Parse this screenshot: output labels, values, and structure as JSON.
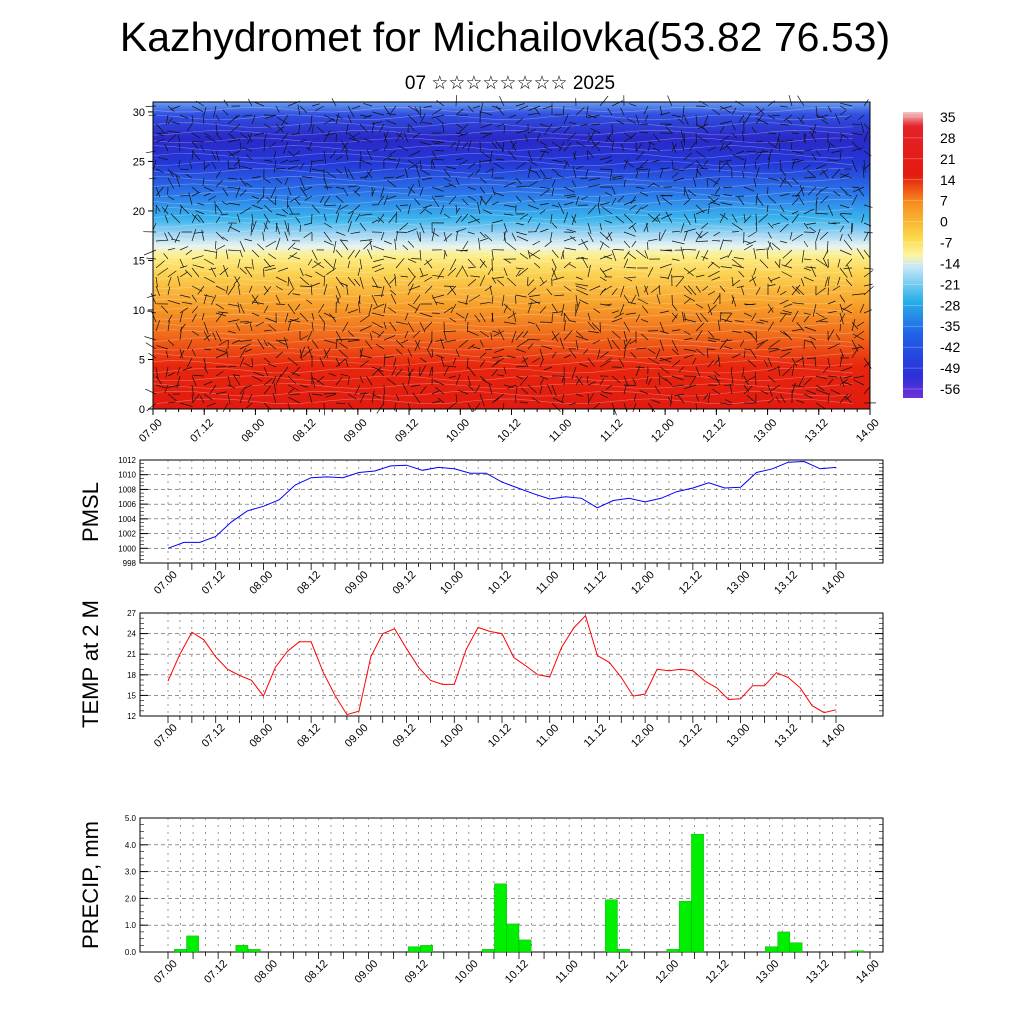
{
  "title": "Kazhydromet for Michailovka(53.82 76.53)",
  "subtitle": "07 ☆☆☆☆☆☆☆☆ 2025",
  "chart_data": [
    {
      "type": "heatmap",
      "name": "Temperature and wind cross-section",
      "x_ticks": [
        "07.00",
        "07.12",
        "08.00",
        "08.12",
        "09.00",
        "09.12",
        "10.00",
        "10.12",
        "11.00",
        "11.12",
        "12.00",
        "12.12",
        "13.00",
        "13.12",
        "14.00"
      ],
      "y_ticks": [
        "0",
        "5",
        "10",
        "15",
        "20",
        "25",
        "30"
      ],
      "ylim": [
        0,
        31
      ],
      "colorbar_labels": [
        "35",
        "28",
        "21",
        "14",
        "7",
        "0",
        "-7",
        "-14",
        "-21",
        "-28",
        "-35",
        "-42",
        "-49",
        "-56"
      ],
      "colors": {
        "warm": "#e4190f",
        "orange": "#f7901e",
        "yellow": "#fcf080",
        "cold_light": "#2ab0e8",
        "blue": "#2337e0",
        "violet": "#6a30d8"
      },
      "bands": [
        {
          "level": 0,
          "value": 30
        },
        {
          "level": 5,
          "value": 25
        },
        {
          "level": 10,
          "value": 14
        },
        {
          "level": 15,
          "value": -7
        },
        {
          "level": 20,
          "value": -42
        },
        {
          "level": 25,
          "value": -56
        },
        {
          "level": 31,
          "value": -49
        }
      ],
      "grid": false
    },
    {
      "type": "line",
      "ylabel": "PMSL",
      "x_ticks": [
        "07.00",
        "07.12",
        "08.00",
        "08.12",
        "09.00",
        "09.12",
        "10.00",
        "10.12",
        "11.00",
        "11.12",
        "12.00",
        "12.12",
        "13.00",
        "13.12",
        "14.00"
      ],
      "y_ticks": [
        "998",
        "1000",
        "1002",
        "1004",
        "1006",
        "1008",
        "1010",
        "1012"
      ],
      "ylim": [
        998,
        1012
      ],
      "color": "#0000ff",
      "grid": true,
      "series": [
        {
          "values": [
            1000.0,
            1000.8,
            1000.8,
            1001.6,
            1003.6,
            1005.1,
            1005.7,
            1006.6,
            1008.6,
            1009.6,
            1009.7,
            1009.6,
            1010.3,
            1010.5,
            1011.2,
            1011.3,
            1010.6,
            1011.0,
            1010.8,
            1010.2,
            1010.2,
            1009.0,
            1008.2,
            1007.4,
            1006.7,
            1007.0,
            1006.8,
            1005.5,
            1006.5,
            1006.8,
            1006.3,
            1006.8,
            1007.7,
            1008.2,
            1008.9,
            1008.2,
            1008.3,
            1010.3,
            1010.8,
            1011.7,
            1011.8,
            1010.8,
            1011.0
          ]
        }
      ]
    },
    {
      "type": "line",
      "ylabel": "TEMP at 2 M",
      "x_ticks": [
        "07.00",
        "07.12",
        "08.00",
        "08.12",
        "09.00",
        "09.12",
        "10.00",
        "10.12",
        "11.00",
        "11.12",
        "12.00",
        "12.12",
        "13.00",
        "13.12",
        "14.00"
      ],
      "y_ticks": [
        "12",
        "15",
        "18",
        "21",
        "24",
        "27"
      ],
      "ylim": [
        12,
        27
      ],
      "color": "#ff0000",
      "grid": true,
      "series": [
        {
          "values": [
            17.1,
            21.0,
            24.2,
            23.1,
            20.6,
            18.8,
            17.9,
            17.2,
            14.9,
            19.1,
            21.4,
            22.8,
            22.8,
            18.4,
            15.0,
            12.2,
            12.7,
            20.6,
            24.0,
            24.7,
            21.8,
            19.1,
            17.2,
            16.6,
            16.6,
            21.7,
            24.9,
            24.3,
            24.0,
            20.5,
            19.3,
            18.0,
            17.7,
            22.0,
            24.8,
            26.6,
            20.8,
            19.8,
            17.6,
            14.9,
            15.2,
            18.8,
            18.6,
            18.8,
            18.6,
            17.1,
            16.1,
            14.4,
            14.5,
            16.4,
            16.4,
            18.3,
            17.6,
            16.1,
            13.5,
            12.5,
            12.9
          ]
        }
      ]
    },
    {
      "type": "bar",
      "ylabel": "PRECIP, mm",
      "x_ticks": [
        "07.00",
        "07.12",
        "08.00",
        "08.12",
        "09.00",
        "09.12",
        "10.00",
        "10.12",
        "11.00",
        "11.12",
        "12.00",
        "12.12",
        "13.00",
        "13.12",
        "14.00"
      ],
      "y_ticks": [
        "0.0",
        "1.0",
        "2.0",
        "3.0",
        "4.0",
        "5.0"
      ],
      "ylim": [
        0,
        5
      ],
      "color": "#00ee00",
      "grid": true,
      "series": [
        {
          "values": [
            0,
            0.1,
            0.6,
            0,
            0,
            0,
            0.25,
            0.1,
            0,
            0,
            0,
            0,
            0,
            0,
            0,
            0,
            0,
            0,
            0,
            0,
            0.2,
            0.25,
            0,
            0,
            0,
            0,
            0.1,
            2.55,
            1.05,
            0.45,
            0,
            0,
            0,
            0,
            0,
            0,
            1.95,
            0.1,
            0,
            0,
            0,
            0.1,
            1.9,
            4.4,
            0,
            0,
            0,
            0,
            0,
            0.2,
            0.75,
            0.35,
            0,
            0,
            0,
            0,
            0.05,
            0
          ]
        }
      ]
    }
  ]
}
